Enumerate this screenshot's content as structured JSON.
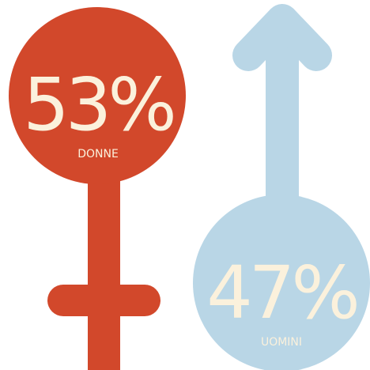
{
  "chart_data": {
    "type": "pie",
    "categories": [
      "DONNE",
      "UOMINI"
    ],
    "values": [
      53,
      47
    ],
    "value_labels": [
      "53%",
      "47%"
    ],
    "colors": [
      "#d2482b",
      "#b9d6e6"
    ],
    "text_color": "#fbf1dc"
  }
}
